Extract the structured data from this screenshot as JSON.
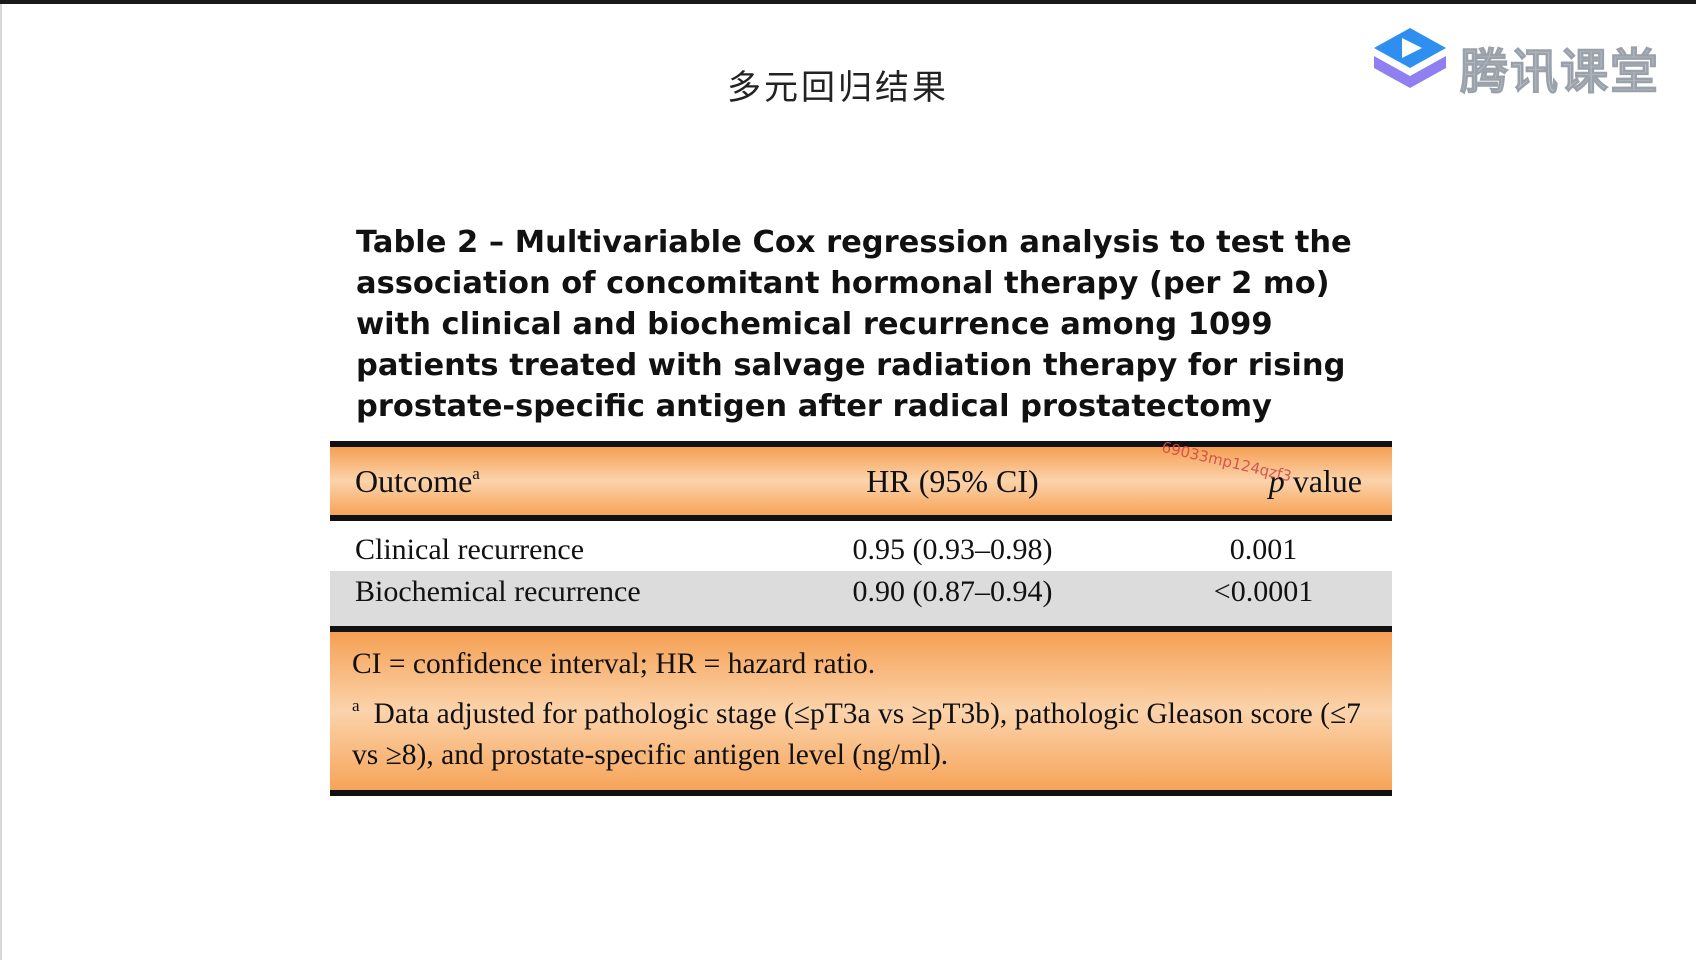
{
  "slide": {
    "title": "多元回归结果",
    "logo_text": "腾讯课堂",
    "watermark": "69033mp124qzf3"
  },
  "table": {
    "caption": "Table 2 – Multivariable Cox regression analysis to test the association of concomitant hormonal therapy (per 2 mo) with clinical and biochemical recurrence among 1099 patients treated with salvage radiation therapy for rising prostate-specific antigen after radical prostatectomy",
    "headers": {
      "outcome": "Outcome",
      "outcome_sup": "a",
      "hr": "HR (95% CI)",
      "p_italic": "p",
      "p_rest": " value"
    },
    "rows": [
      {
        "outcome": "Clinical recurrence",
        "hr": "0.95 (0.93–0.98)",
        "p": "0.001"
      },
      {
        "outcome": "Biochemical recurrence",
        "hr": "0.90 (0.87–0.94)",
        "p": "<0.0001"
      }
    ],
    "footnotes": {
      "abbrev": "CI = confidence interval; HR = hazard ratio.",
      "note_marker": "a",
      "note": "Data adjusted for pathologic stage (≤pT3a vs ≥pT3b), pathologic Gleason score (≤7 vs ≥8), and prostate-specific antigen level (ng/ml)."
    }
  },
  "colors": {
    "band_orange": "#f5a053",
    "row_gray": "#dcdcdc",
    "logo_blue": "#3aa0f0",
    "watermark_red": "#d34b4b"
  }
}
